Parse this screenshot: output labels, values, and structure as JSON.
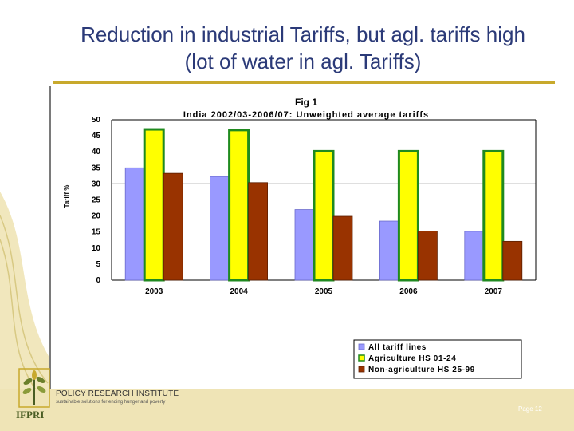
{
  "slide": {
    "title_line1": "Reduction in industrial Tariffs, but agl. tariffs high",
    "title_line2": "(lot of water in agl. Tariffs)",
    "org_name": "POLICY RESEARCH INSTITUTE",
    "tagline": "sustainable solutions for ending hunger and poverty",
    "logo_text": "IFPRI",
    "page_label": "Page 12"
  },
  "colors": {
    "title": "#2b3a78",
    "rule": "#c8a92c",
    "series_all": "#9999ff",
    "series_agri": "#ffff00",
    "series_agri_border": "#1f8a1f",
    "series_nonagri": "#993300"
  },
  "chart_data": {
    "type": "bar",
    "title": "Fig 1",
    "subtitle": "India  2002/03-2006/07: Unweighted average tariffs",
    "ylabel": "Tariff %",
    "xlabel": "",
    "ylim": [
      0,
      50
    ],
    "yticks": [
      0,
      5,
      10,
      15,
      20,
      25,
      30,
      35,
      40,
      45,
      50
    ],
    "gridlines": [
      30,
      50
    ],
    "categories": [
      "2003",
      "2004",
      "2005",
      "2006",
      "2007"
    ],
    "series": [
      {
        "name": "All tariff lines",
        "values": [
          35,
          32.3,
          22,
          18.4,
          15.2
        ]
      },
      {
        "name": "Agriculture HS 01-24",
        "values": [
          47,
          46.8,
          40.2,
          40.2,
          40.2
        ]
      },
      {
        "name": "Non-agriculture HS 25-99",
        "values": [
          33.3,
          30.4,
          19.9,
          15.3,
          12.1
        ]
      }
    ],
    "legend_position": "bottom-right"
  }
}
